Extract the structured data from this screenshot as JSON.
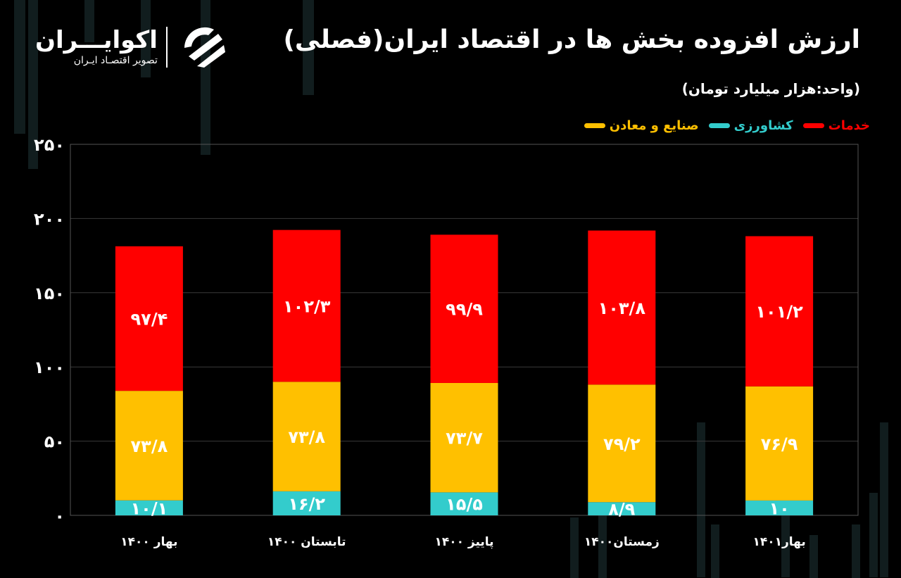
{
  "header": {
    "title": "ارزش افزوده بخش ها در اقتصاد ایران(فصلی)",
    "subtitle": "(واحد:هزار میلیارد تومان)"
  },
  "logo": {
    "name": "اکوایـــران",
    "tagline": "تصویر اقتصـاد ایـران",
    "icon": "ekoiran-logo-icon"
  },
  "colors": {
    "background": "#000000",
    "services": "#ff0000",
    "industry": "#ffc000",
    "agriculture": "#33cccc"
  },
  "legend": [
    {
      "label": "صنایع و معادن",
      "color": "#ffc000"
    },
    {
      "label": "کشاورزی",
      "color": "#33cccc"
    },
    {
      "label": "خدمات",
      "color": "#ff0000"
    }
  ],
  "chart_data": {
    "type": "bar",
    "stacked": true,
    "categories": [
      "بهار ۱۴۰۰",
      "تابستان ۱۴۰۰",
      "پاییز ۱۴۰۰",
      "زمستان۱۴۰۰",
      "بهار۱۴۰۱"
    ],
    "series": [
      {
        "name": "کشاورزی",
        "color": "#33cccc",
        "values": [
          10.1,
          16.2,
          15.5,
          8.9,
          10
        ],
        "labels": [
          "۱۰/۱",
          "۱۶/۲",
          "۱۵/۵",
          "۸/۹",
          "۱۰"
        ]
      },
      {
        "name": "صنایع و معادن",
        "color": "#ffc000",
        "values": [
          73.8,
          73.8,
          73.7,
          79.2,
          76.9
        ],
        "labels": [
          "۷۳/۸",
          "۷۳/۸",
          "۷۳/۷",
          "۷۹/۲",
          "۷۶/۹"
        ]
      },
      {
        "name": "خدمات",
        "color": "#ff0000",
        "values": [
          97.4,
          102.3,
          99.9,
          103.8,
          101.2
        ],
        "labels": [
          "۹۷/۴",
          "۱۰۲/۳",
          "۹۹/۹",
          "۱۰۳/۸",
          "۱۰۱/۲"
        ]
      }
    ],
    "yticks": [
      0,
      50,
      100,
      150,
      200,
      250
    ],
    "ytick_labels": [
      "۰",
      "۵۰",
      "۱۰۰",
      "۱۵۰",
      "۲۰۰",
      "۲۵۰"
    ],
    "ylim": [
      0,
      250
    ],
    "grid": true,
    "legend_position": "top-right"
  }
}
